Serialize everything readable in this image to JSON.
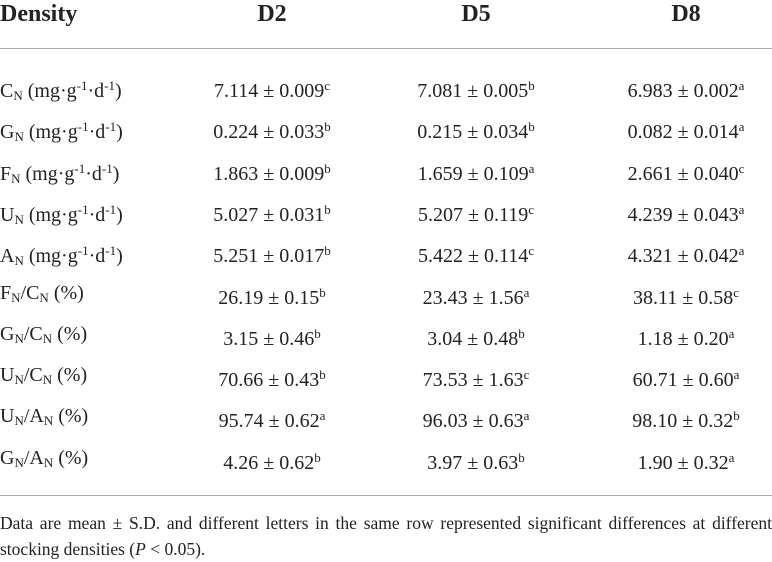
{
  "table": {
    "header": [
      "Density",
      "D2",
      "D5",
      "D8"
    ],
    "rows": [
      {
        "label": [
          {
            "t": "C"
          },
          {
            "sub": "N"
          },
          {
            "t": " (mg·g"
          },
          {
            "sup": "-1"
          },
          {
            "t": "·d"
          },
          {
            "sup": "-1"
          },
          {
            "t": ")"
          }
        ],
        "cells": [
          {
            "text": "7.114 ± 0.009",
            "sig": "c"
          },
          {
            "text": "7.081 ± 0.005",
            "sig": "b"
          },
          {
            "text": "6.983 ± 0.002",
            "sig": "a"
          }
        ]
      },
      {
        "label": [
          {
            "t": "G"
          },
          {
            "sub": "N"
          },
          {
            "t": " (mg·g"
          },
          {
            "sup": "-1"
          },
          {
            "t": "·d"
          },
          {
            "sup": "-1"
          },
          {
            "t": ")"
          }
        ],
        "cells": [
          {
            "text": "0.224 ± 0.033",
            "sig": "b"
          },
          {
            "text": "0.215 ± 0.034",
            "sig": "b"
          },
          {
            "text": "0.082 ± 0.014",
            "sig": "a"
          }
        ]
      },
      {
        "label": [
          {
            "t": "F"
          },
          {
            "sub": "N"
          },
          {
            "t": " (mg·g"
          },
          {
            "sup": "-1"
          },
          {
            "t": "·d"
          },
          {
            "sup": "-1"
          },
          {
            "t": ")"
          }
        ],
        "cells": [
          {
            "text": "1.863 ± 0.009",
            "sig": "b"
          },
          {
            "text": "1.659 ± 0.109",
            "sig": "a"
          },
          {
            "text": "2.661 ± 0.040",
            "sig": "c"
          }
        ]
      },
      {
        "label": [
          {
            "t": "U"
          },
          {
            "sub": "N"
          },
          {
            "t": " (mg·g"
          },
          {
            "sup": "-1"
          },
          {
            "t": "·d"
          },
          {
            "sup": "-1"
          },
          {
            "t": ")"
          }
        ],
        "cells": [
          {
            "text": "5.027 ± 0.031",
            "sig": "b"
          },
          {
            "text": "5.207 ± 0.119",
            "sig": "c"
          },
          {
            "text": "4.239 ± 0.043",
            "sig": "a"
          }
        ]
      },
      {
        "label": [
          {
            "t": "A"
          },
          {
            "sub": "N"
          },
          {
            "t": " (mg·g"
          },
          {
            "sup": "-1"
          },
          {
            "t": "·d"
          },
          {
            "sup": "-1"
          },
          {
            "t": ")"
          }
        ],
        "cells": [
          {
            "text": "5.251 ± 0.017",
            "sig": "b"
          },
          {
            "text": "5.422 ± 0.114",
            "sig": "c"
          },
          {
            "text": "4.321 ± 0.042",
            "sig": "a"
          }
        ]
      },
      {
        "label": [
          {
            "t": "F"
          },
          {
            "sub": "N"
          },
          {
            "t": "/C"
          },
          {
            "sub": "N"
          },
          {
            "t": " (%)"
          }
        ],
        "cells": [
          {
            "text": "26.19 ± 0.15",
            "sig": "b"
          },
          {
            "text": "23.43 ± 1.56",
            "sig": "a"
          },
          {
            "text": "38.11 ± 0.58",
            "sig": "c"
          }
        ]
      },
      {
        "label": [
          {
            "t": "G"
          },
          {
            "sub": "N"
          },
          {
            "t": "/C"
          },
          {
            "sub": "N"
          },
          {
            "t": " (%)"
          }
        ],
        "cells": [
          {
            "text": "3.15 ± 0.46",
            "sig": "b"
          },
          {
            "text": "3.04 ± 0.48",
            "sig": "b"
          },
          {
            "text": "1.18 ± 0.20",
            "sig": "a"
          }
        ]
      },
      {
        "label": [
          {
            "t": "U"
          },
          {
            "sub": "N"
          },
          {
            "t": "/C"
          },
          {
            "sub": "N"
          },
          {
            "t": " (%)"
          }
        ],
        "cells": [
          {
            "text": "70.66 ± 0.43",
            "sig": "b"
          },
          {
            "text": "73.53 ± 1.63",
            "sig": "c"
          },
          {
            "text": "60.71 ± 0.60",
            "sig": "a"
          }
        ]
      },
      {
        "label": [
          {
            "t": "U"
          },
          {
            "sub": "N"
          },
          {
            "t": "/A"
          },
          {
            "sub": "N"
          },
          {
            "t": " (%)"
          }
        ],
        "cells": [
          {
            "text": "95.74 ± 0.62",
            "sig": "a"
          },
          {
            "text": "96.03 ± 0.63",
            "sig": "a"
          },
          {
            "text": "98.10 ± 0.32",
            "sig": "b"
          }
        ]
      },
      {
        "label": [
          {
            "t": "G"
          },
          {
            "sub": "N"
          },
          {
            "t": "/A"
          },
          {
            "sub": "N"
          },
          {
            "t": " (%)"
          }
        ],
        "cells": [
          {
            "text": "4.26 ± 0.62",
            "sig": "b"
          },
          {
            "text": "3.97 ± 0.63",
            "sig": "b"
          },
          {
            "text": "1.90 ± 0.32",
            "sig": "a"
          }
        ]
      }
    ],
    "note": [
      {
        "t": "Data are mean ± S.D. and different letters in the same row represented significant differences at different stocking densities ("
      },
      {
        "i": "P"
      },
      {
        "t": " < 0.05)."
      }
    ]
  }
}
